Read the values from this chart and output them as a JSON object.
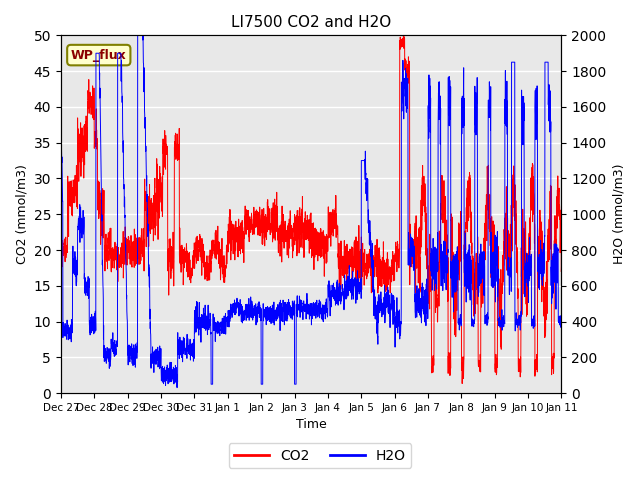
{
  "title": "LI7500 CO2 and H2O",
  "xlabel": "Time",
  "ylabel_left": "CO2 (mmol/m3)",
  "ylabel_right": "H2O (mmol/m3)",
  "ylim_left": [
    0,
    50
  ],
  "ylim_right": [
    0,
    2000
  ],
  "annotation_text": "WP_flux",
  "plot_bg_color": "#e8e8e8",
  "co2_color": "red",
  "h2o_color": "blue",
  "legend_co2": "CO2",
  "legend_h2o": "H2O",
  "tick_labels": [
    "Dec 27",
    "Dec 28",
    "Dec 29",
    "Dec 30",
    "Dec 31",
    "Jan 1",
    "Jan 2",
    "Jan 3",
    "Jan 4",
    "Jan 5",
    "Jan 6",
    "Jan 7",
    "Jan 8",
    "Jan 9",
    "Jan 10",
    "Jan 11"
  ],
  "num_points": 3000,
  "num_days": 15
}
